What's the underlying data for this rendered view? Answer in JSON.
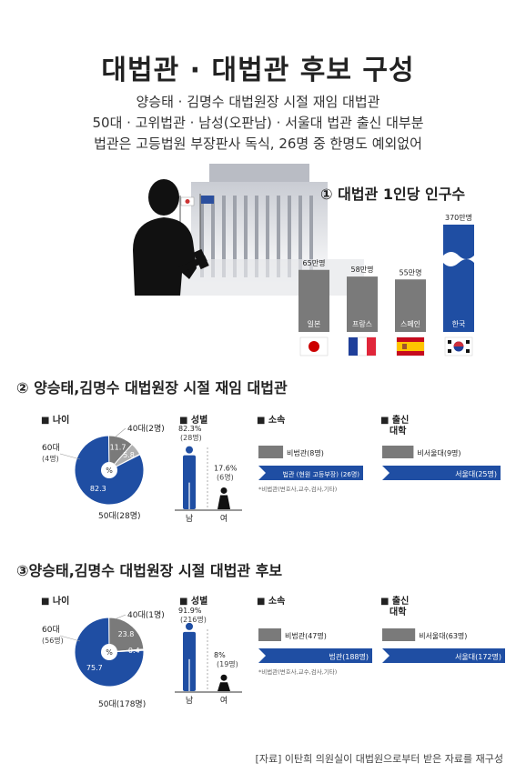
{
  "title": "대법관 · 대법관 후보 구성",
  "subtitle_lines": [
    "양승태 · 김명수 대법원장 시절 재임 대법관",
    "50대 · 고위법관 · 남성(오판남) · 서울대 법관 출신 대부분",
    "법관은 고등법원 부장판사 독식, 26명 중 한명도 예외없어"
  ],
  "colors": {
    "blue": "#1f4ea3",
    "gray": "#7a7a7a",
    "lightgray": "#b0b0b0"
  },
  "chart_data": [
    {
      "type": "bar",
      "title": "① 대법관 1인당 인구수",
      "categories": [
        "일본",
        "프랑스",
        "스페인",
        "한국"
      ],
      "values": [
        65,
        58,
        55,
        370
      ],
      "value_labels": [
        "65만명",
        "58만명",
        "55만명",
        "370만명"
      ],
      "flags": [
        "japan-flag-icon",
        "france-flag-icon",
        "spain-flag-icon",
        "korea-flag-icon"
      ]
    },
    {
      "section_title": "② 양승태,김명수 대법원장 시절 재임 대법관",
      "age": {
        "type": "pie",
        "header": "■ 나이",
        "center": "%",
        "slices": [
          {
            "name": "50대",
            "count": "(28명)",
            "value": 82.3,
            "label": "82.3"
          },
          {
            "name": "60대",
            "count": "(4명)",
            "value": 11.7,
            "label": "11.7"
          },
          {
            "name": "40대",
            "count": "(2명)",
            "value": 5.8,
            "label": "5.8"
          }
        ]
      },
      "gender": {
        "header": "■ 성별",
        "male": {
          "pct": "82.3%",
          "count": "(28명)",
          "label": "남",
          "value": 82.3
        },
        "female": {
          "pct": "17.6%",
          "count": "(6명)",
          "label": "여",
          "value": 17.6
        }
      },
      "affiliation": {
        "header": "■ 소속",
        "rows": [
          {
            "label": "비법관",
            "count": "(8명)",
            "value": 8
          },
          {
            "label": "법관",
            "count": "(26명)",
            "detail": "(현원 고등부장)",
            "value": 26
          }
        ],
        "note": "*비법관(변호사,교수,검사,기타)"
      },
      "university": {
        "header": "■ 출신",
        "header2": "대학",
        "rows": [
          {
            "label": "비서울대",
            "count": "(9명)",
            "value": 9
          },
          {
            "label": "서울대",
            "count": "(25명)",
            "value": 25
          }
        ]
      }
    },
    {
      "section_title": "③양승태,김명수 대법원장 시절 대법관 후보",
      "age": {
        "type": "pie",
        "header": "■ 나이",
        "center": "%",
        "slices": [
          {
            "name": "50대",
            "count": "(178명)",
            "value": 75.7,
            "label": "75.7"
          },
          {
            "name": "60대",
            "count": "(56명)",
            "value": 23.8,
            "label": "23.8"
          },
          {
            "name": "40대",
            "count": "(1명)",
            "value": 0.4,
            "label": "0.4"
          }
        ]
      },
      "gender": {
        "header": "■ 성별",
        "male": {
          "pct": "91.9%",
          "count": "(216명)",
          "label": "남",
          "value": 91.9
        },
        "female": {
          "pct": "8%",
          "count": "(19명)",
          "label": "여",
          "value": 8
        }
      },
      "affiliation": {
        "header": "■ 소속",
        "rows": [
          {
            "label": "비법관",
            "count": "(47명)",
            "value": 47
          },
          {
            "label": "법관",
            "count": "(188명)",
            "value": 188
          }
        ],
        "note": "*비법관(변호사,교수,검사,기타)"
      },
      "university": {
        "header": "■ 출신",
        "header2": "대학",
        "rows": [
          {
            "label": "비서울대",
            "count": "(63명)",
            "value": 63
          },
          {
            "label": "서울대",
            "count": "(172명)",
            "value": 172
          }
        ]
      }
    }
  ],
  "source": "[자료] 이탄희 의원실이 대법원으로부터 받은 자료를 재구성"
}
